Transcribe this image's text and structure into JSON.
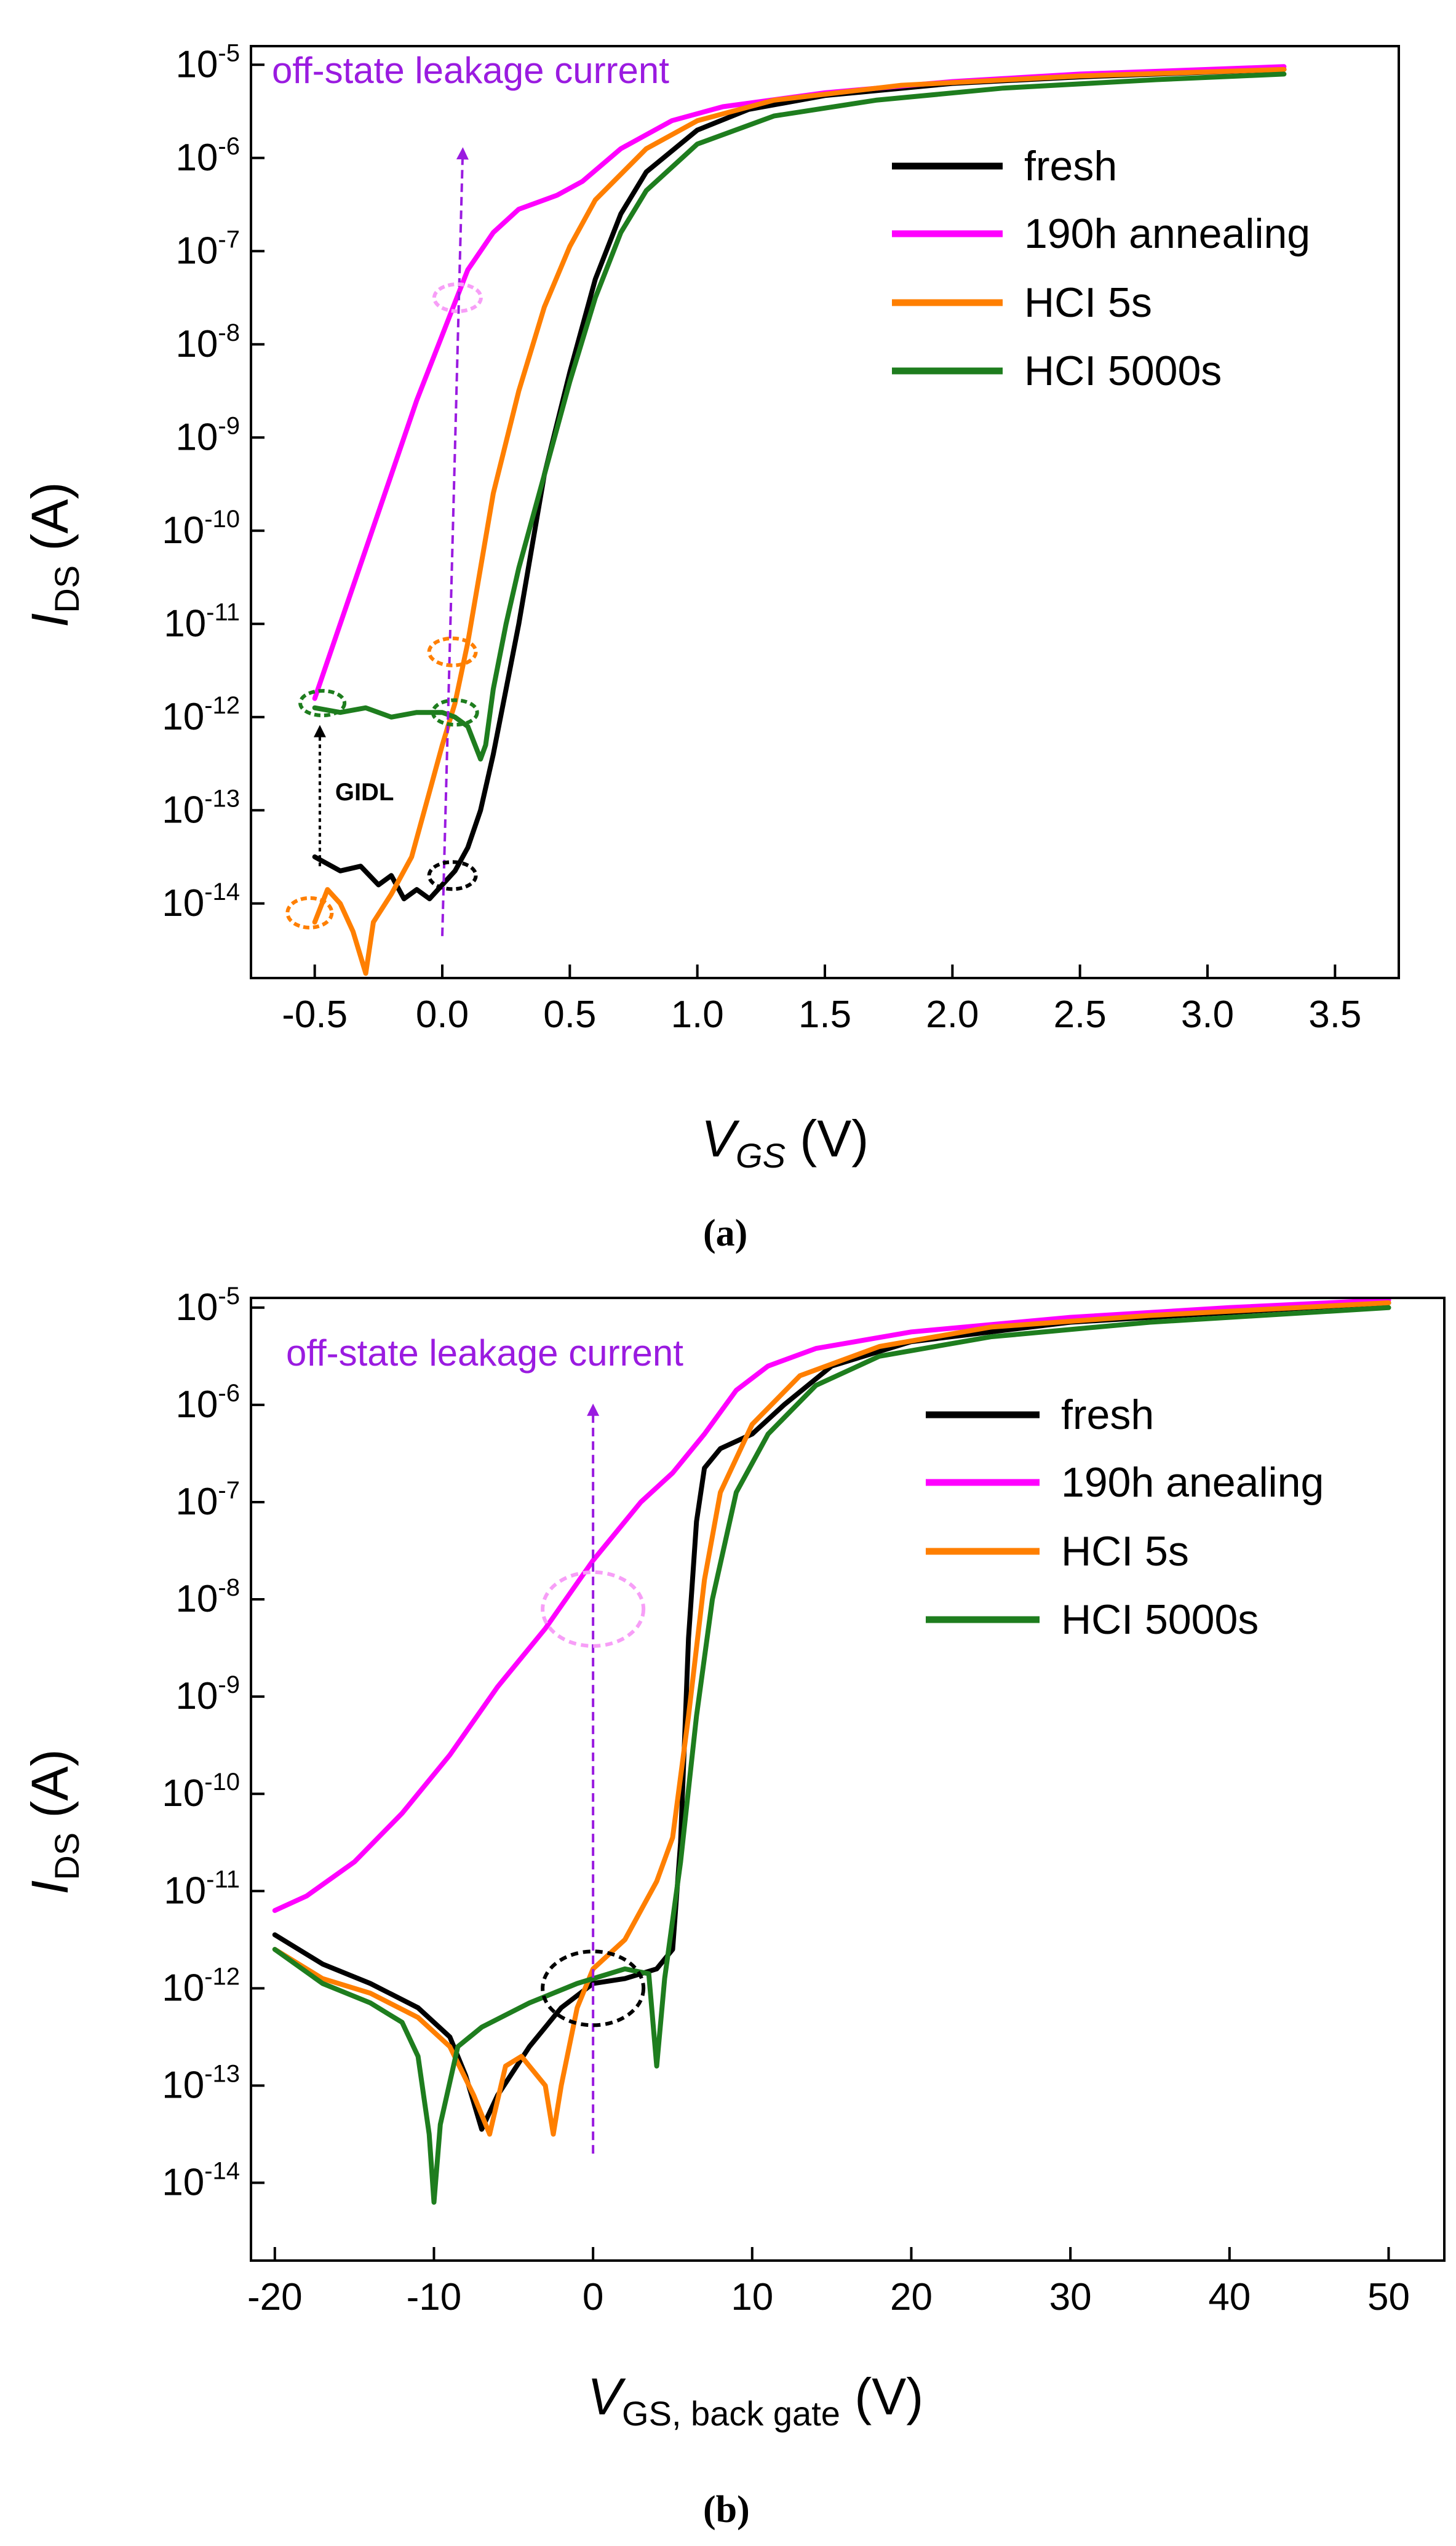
{
  "chart_data": [
    {
      "type": "line",
      "panel_label": "a",
      "caption": "(a)",
      "xlabel": "V",
      "xlabel_sub": "GS",
      "xlabel_unit": " (V)",
      "ylabel": "I",
      "ylabel_sub": "DS",
      "ylabel_unit": " (A)",
      "xlim": [
        -0.75,
        3.75
      ],
      "ylim_log10": [
        -14.8,
        -4.8
      ],
      "xticks": [
        -0.5,
        0.0,
        0.5,
        1.0,
        1.5,
        2.0,
        2.5,
        3.0,
        3.5
      ],
      "xtick_labels": [
        "-0.5",
        "0.0",
        "0.5",
        "1.0",
        "1.5",
        "2.0",
        "2.5",
        "3.0",
        "3.5"
      ],
      "yticks_exp": [
        -5,
        -6,
        -7,
        -8,
        -9,
        -10,
        -11,
        -12,
        -13,
        -14
      ],
      "ytick_base": "10",
      "annotation": "off-state leakage current",
      "gidl_label": "GIDL",
      "legend": [
        "fresh",
        "190h annealing",
        "HCI 5s",
        "HCI 5000s"
      ],
      "series": [
        {
          "name": "fresh",
          "color": "#000000",
          "points": [
            [
              -0.5,
              -13.5
            ],
            [
              -0.4,
              -13.65
            ],
            [
              -0.32,
              -13.6
            ],
            [
              -0.25,
              -13.8
            ],
            [
              -0.2,
              -13.7
            ],
            [
              -0.15,
              -13.95
            ],
            [
              -0.1,
              -13.85
            ],
            [
              -0.05,
              -13.95
            ],
            [
              0.0,
              -13.8
            ],
            [
              0.05,
              -13.65
            ],
            [
              0.1,
              -13.4
            ],
            [
              0.15,
              -13.0
            ],
            [
              0.2,
              -12.4
            ],
            [
              0.25,
              -11.7
            ],
            [
              0.3,
              -11.0
            ],
            [
              0.35,
              -10.2
            ],
            [
              0.4,
              -9.4
            ],
            [
              0.5,
              -8.3
            ],
            [
              0.6,
              -7.3
            ],
            [
              0.7,
              -6.6
            ],
            [
              0.8,
              -6.15
            ],
            [
              1.0,
              -5.7
            ],
            [
              1.2,
              -5.48
            ],
            [
              1.5,
              -5.33
            ],
            [
              2.0,
              -5.2
            ],
            [
              2.5,
              -5.13
            ],
            [
              3.0,
              -5.08
            ],
            [
              3.3,
              -5.05
            ]
          ]
        },
        {
          "name": "190h annealing",
          "color": "#ff00ff",
          "points": [
            [
              -0.5,
              -11.8
            ],
            [
              -0.4,
              -11.0
            ],
            [
              -0.3,
              -10.2
            ],
            [
              -0.2,
              -9.4
            ],
            [
              -0.1,
              -8.6
            ],
            [
              0.0,
              -7.9
            ],
            [
              0.05,
              -7.55
            ],
            [
              0.1,
              -7.2
            ],
            [
              0.2,
              -6.8
            ],
            [
              0.3,
              -6.55
            ],
            [
              0.45,
              -6.4
            ],
            [
              0.55,
              -6.25
            ],
            [
              0.7,
              -5.9
            ],
            [
              0.9,
              -5.6
            ],
            [
              1.1,
              -5.45
            ],
            [
              1.5,
              -5.3
            ],
            [
              2.0,
              -5.18
            ],
            [
              2.5,
              -5.1
            ],
            [
              3.0,
              -5.05
            ],
            [
              3.3,
              -5.02
            ]
          ]
        },
        {
          "name": "HCI 5s",
          "color": "#ff7f00",
          "points": [
            [
              -0.5,
              -14.2
            ],
            [
              -0.45,
              -13.85
            ],
            [
              -0.4,
              -14.0
            ],
            [
              -0.35,
              -14.3
            ],
            [
              -0.3,
              -14.75
            ],
            [
              -0.27,
              -14.2
            ],
            [
              -0.2,
              -13.9
            ],
            [
              -0.12,
              -13.5
            ],
            [
              -0.05,
              -12.8
            ],
            [
              0.0,
              -12.3
            ],
            [
              0.05,
              -11.85
            ],
            [
              0.1,
              -11.2
            ],
            [
              0.15,
              -10.4
            ],
            [
              0.2,
              -9.6
            ],
            [
              0.3,
              -8.5
            ],
            [
              0.4,
              -7.6
            ],
            [
              0.5,
              -6.95
            ],
            [
              0.6,
              -6.45
            ],
            [
              0.8,
              -5.9
            ],
            [
              1.0,
              -5.6
            ],
            [
              1.3,
              -5.38
            ],
            [
              1.8,
              -5.22
            ],
            [
              2.5,
              -5.12
            ],
            [
              3.3,
              -5.05
            ]
          ]
        },
        {
          "name": "HCI 5000s",
          "color": "#1e7d1e",
          "points": [
            [
              -0.5,
              -11.9
            ],
            [
              -0.4,
              -11.95
            ],
            [
              -0.3,
              -11.9
            ],
            [
              -0.2,
              -12.0
            ],
            [
              -0.1,
              -11.95
            ],
            [
              0.0,
              -11.95
            ],
            [
              0.05,
              -12.0
            ],
            [
              0.1,
              -12.1
            ],
            [
              0.15,
              -12.45
            ],
            [
              0.17,
              -12.3
            ],
            [
              0.2,
              -11.7
            ],
            [
              0.25,
              -11.0
            ],
            [
              0.3,
              -10.4
            ],
            [
              0.4,
              -9.4
            ],
            [
              0.5,
              -8.4
            ],
            [
              0.6,
              -7.5
            ],
            [
              0.7,
              -6.8
            ],
            [
              0.8,
              -6.35
            ],
            [
              1.0,
              -5.85
            ],
            [
              1.3,
              -5.55
            ],
            [
              1.7,
              -5.38
            ],
            [
              2.2,
              -5.25
            ],
            [
              2.8,
              -5.16
            ],
            [
              3.3,
              -5.1
            ]
          ]
        }
      ]
    },
    {
      "type": "line",
      "panel_label": "b",
      "caption": "(b)",
      "xlabel": "V",
      "xlabel_sub": "GS, back gate",
      "xlabel_unit": " (V)",
      "ylabel": "I",
      "ylabel_sub": "DS",
      "ylabel_unit": " (A)",
      "xlim": [
        -21.5,
        53.5
      ],
      "ylim_log10": [
        -14.8,
        -4.9
      ],
      "xticks": [
        -20,
        -10,
        0,
        10,
        20,
        30,
        40,
        50
      ],
      "xtick_labels": [
        "-20",
        "-10",
        "0",
        "10",
        "20",
        "30",
        "40",
        "50"
      ],
      "yticks_exp": [
        -5,
        -6,
        -7,
        -8,
        -9,
        -10,
        -11,
        -12,
        -13,
        -14
      ],
      "ytick_base": "10",
      "annotation": "off-state leakage current",
      "legend": [
        "fresh",
        "190h anealing",
        "HCI 5s",
        "HCI 5000s"
      ],
      "series": [
        {
          "name": "fresh",
          "color": "#000000",
          "points": [
            [
              -20,
              -11.45
            ],
            [
              -17,
              -11.75
            ],
            [
              -14,
              -11.95
            ],
            [
              -11,
              -12.2
            ],
            [
              -9,
              -12.5
            ],
            [
              -8,
              -12.9
            ],
            [
              -7,
              -13.45
            ],
            [
              -6,
              -13.1
            ],
            [
              -4,
              -12.6
            ],
            [
              -2,
              -12.2
            ],
            [
              0,
              -11.95
            ],
            [
              2,
              -11.9
            ],
            [
              4,
              -11.8
            ],
            [
              5,
              -11.6
            ],
            [
              5.5,
              -10.5
            ],
            [
              6,
              -8.4
            ],
            [
              6.5,
              -7.2
            ],
            [
              7,
              -6.65
            ],
            [
              8,
              -6.45
            ],
            [
              10,
              -6.3
            ],
            [
              12,
              -6.0
            ],
            [
              15,
              -5.6
            ],
            [
              20,
              -5.35
            ],
            [
              30,
              -5.15
            ],
            [
              40,
              -5.05
            ],
            [
              50,
              -4.95
            ]
          ]
        },
        {
          "name": "190h anealing",
          "color": "#ff00ff",
          "points": [
            [
              -20,
              -11.2
            ],
            [
              -18,
              -11.05
            ],
            [
              -15,
              -10.7
            ],
            [
              -12,
              -10.2
            ],
            [
              -9,
              -9.6
            ],
            [
              -6,
              -8.9
            ],
            [
              -3,
              -8.3
            ],
            [
              0,
              -7.6
            ],
            [
              3,
              -7.0
            ],
            [
              5,
              -6.7
            ],
            [
              7,
              -6.3
            ],
            [
              9,
              -5.85
            ],
            [
              11,
              -5.6
            ],
            [
              14,
              -5.42
            ],
            [
              20,
              -5.25
            ],
            [
              30,
              -5.1
            ],
            [
              40,
              -5.0
            ],
            [
              50,
              -4.92
            ]
          ]
        },
        {
          "name": "HCI 5s",
          "color": "#ff7f00",
          "points": [
            [
              -20,
              -11.6
            ],
            [
              -17,
              -11.9
            ],
            [
              -14,
              -12.05
            ],
            [
              -11,
              -12.3
            ],
            [
              -9,
              -12.6
            ],
            [
              -7.5,
              -13.1
            ],
            [
              -6.5,
              -13.5
            ],
            [
              -5.5,
              -12.8
            ],
            [
              -4.5,
              -12.7
            ],
            [
              -3,
              -13.0
            ],
            [
              -2.5,
              -13.5
            ],
            [
              -2,
              -13.0
            ],
            [
              -1,
              -12.2
            ],
            [
              0,
              -11.8
            ],
            [
              2,
              -11.5
            ],
            [
              4,
              -10.9
            ],
            [
              5,
              -10.45
            ],
            [
              6,
              -9.2
            ],
            [
              7,
              -7.8
            ],
            [
              8,
              -6.9
            ],
            [
              10,
              -6.2
            ],
            [
              13,
              -5.7
            ],
            [
              18,
              -5.4
            ],
            [
              25,
              -5.2
            ],
            [
              35,
              -5.08
            ],
            [
              50,
              -4.95
            ]
          ]
        },
        {
          "name": "HCI 5000s",
          "color": "#1e7d1e",
          "points": [
            [
              -20,
              -11.6
            ],
            [
              -17,
              -11.95
            ],
            [
              -14,
              -12.15
            ],
            [
              -12,
              -12.35
            ],
            [
              -11,
              -12.7
            ],
            [
              -10.3,
              -13.5
            ],
            [
              -10,
              -14.2
            ],
            [
              -9.6,
              -13.4
            ],
            [
              -8.5,
              -12.6
            ],
            [
              -7,
              -12.4
            ],
            [
              -4,
              -12.15
            ],
            [
              -1,
              -11.95
            ],
            [
              2,
              -11.8
            ],
            [
              3.5,
              -11.85
            ],
            [
              4,
              -12.8
            ],
            [
              4.5,
              -11.9
            ],
            [
              5.5,
              -10.7
            ],
            [
              6.5,
              -9.2
            ],
            [
              7.5,
              -8.0
            ],
            [
              9,
              -6.9
            ],
            [
              11,
              -6.3
            ],
            [
              14,
              -5.8
            ],
            [
              18,
              -5.5
            ],
            [
              25,
              -5.3
            ],
            [
              35,
              -5.15
            ],
            [
              50,
              -5.0
            ]
          ]
        }
      ]
    }
  ]
}
